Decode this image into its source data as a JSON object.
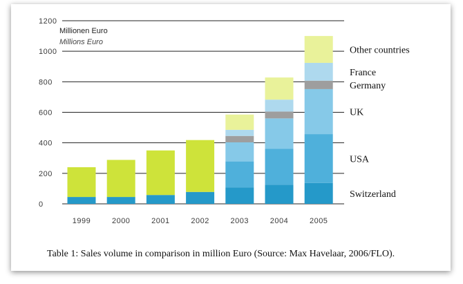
{
  "chart_data": {
    "type": "bar",
    "stacked": true,
    "categories": [
      "1999",
      "2000",
      "2001",
      "2002",
      "2003",
      "2004",
      "2005"
    ],
    "ylim": [
      0,
      1200
    ],
    "yticks": [
      0,
      200,
      400,
      600,
      800,
      1000,
      1200
    ],
    "unit_label_de": "Millionen Euro",
    "unit_label_en": "Millions Euro",
    "grid": true,
    "legend": "right",
    "series": [
      {
        "name": "Switzerland",
        "color": "#2599c9",
        "values": [
          45,
          45,
          58,
          78,
          108,
          125,
          137
        ]
      },
      {
        "name": "USA",
        "color": "#4fb0db",
        "values": [
          0,
          0,
          0,
          0,
          170,
          235,
          320
        ]
      },
      {
        "name": "UK",
        "color": "#86c9e8",
        "values": [
          0,
          0,
          0,
          0,
          125,
          200,
          295
        ]
      },
      {
        "name": "Germany",
        "color": "#9e9e9e",
        "values": [
          0,
          0,
          0,
          0,
          42,
          45,
          55
        ]
      },
      {
        "name": "France",
        "color": "#aed9ee",
        "values": [
          0,
          0,
          0,
          0,
          40,
          78,
          117
        ]
      },
      {
        "name": "Other countries",
        "color": "#e9f29a",
        "values": [
          0,
          0,
          0,
          0,
          100,
          145,
          176
        ]
      },
      {
        "name": "",
        "color": "#cee33a",
        "values": [
          195,
          243,
          292,
          340,
          0,
          0,
          0
        ]
      }
    ]
  },
  "caption": "Table 1: Sales volume in comparison in million Euro (Source: Max Havelaar, 2006/FLO)."
}
